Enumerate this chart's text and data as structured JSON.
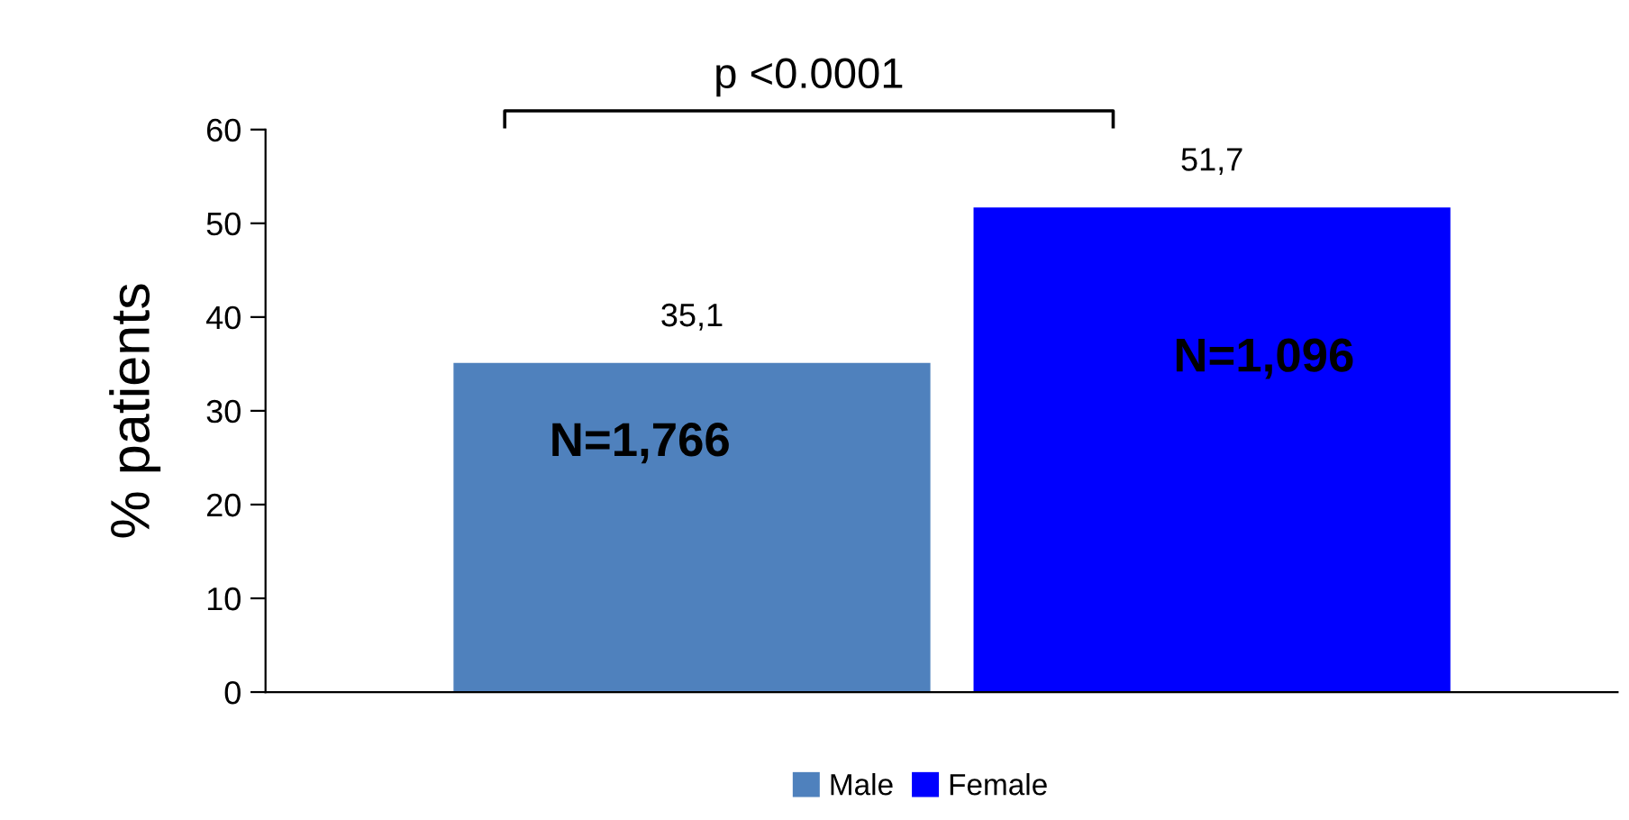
{
  "chart_data": {
    "type": "bar",
    "ylabel": "% patients",
    "categories": [
      null,
      null
    ],
    "series": [
      {
        "name": "Male",
        "color": "#4f81bd",
        "values": [
          35.1,
          null
        ],
        "value_labels": [
          "35,1",
          null
        ]
      },
      {
        "name": "Female",
        "color": "#0000ff",
        "values": [
          null,
          51.7
        ],
        "value_labels": [
          null,
          "51,7"
        ]
      }
    ],
    "ylim": [
      0,
      60
    ],
    "yticks": [
      0,
      10,
      20,
      30,
      40,
      50,
      60
    ],
    "grid": false,
    "legend": "bottom",
    "annotations": [
      "p <0.0001",
      "N=1,766",
      "N=1,096"
    ]
  }
}
